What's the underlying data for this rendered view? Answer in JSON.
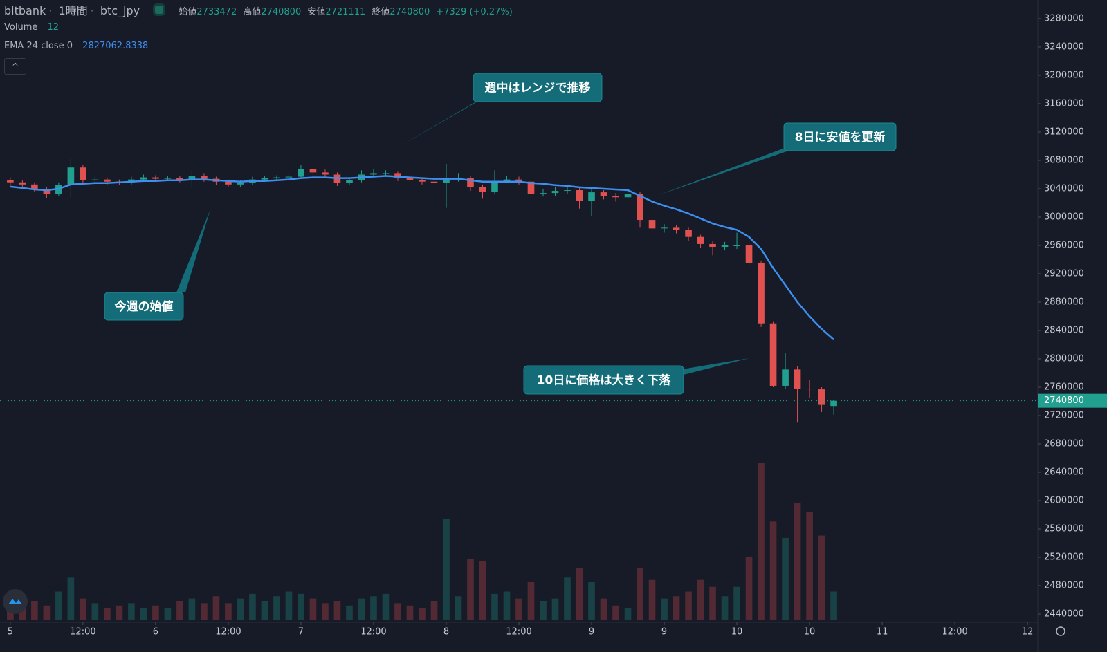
{
  "chart_data": {
    "type": "candlestick",
    "header": {
      "exchange": "bitbank",
      "interval": "1時間",
      "symbol": "btc_jpy",
      "open_label": "始値",
      "high_label": "高値",
      "low_label": "安値",
      "close_label": "終値",
      "change": "+7329 (+0.27%)"
    },
    "volume_name": "Volume",
    "up_color": "#22a08f",
    "down_color": "#e0514f",
    "x": [
      0,
      2,
      4,
      6,
      8,
      10,
      12,
      14,
      16,
      18,
      20,
      22,
      24,
      26,
      28,
      30,
      32,
      34,
      36,
      38,
      40,
      42,
      44,
      46,
      48,
      50,
      52,
      54,
      56,
      58,
      60,
      62,
      64,
      66,
      68,
      70,
      72,
      74,
      76,
      78,
      80,
      82,
      84,
      86,
      88,
      90,
      92,
      94,
      96,
      98,
      100,
      102,
      104,
      106,
      108,
      110,
      112,
      114,
      116,
      118,
      120,
      122,
      124,
      126,
      128,
      130,
      132,
      134,
      136
    ],
    "open": [
      3052000,
      3049000,
      3046000,
      3040000,
      3033000,
      3045000,
      3070000,
      3052000,
      3053000,
      3050000,
      3049000,
      3053000,
      3056000,
      3054000,
      3055000,
      3052000,
      3058000,
      3054000,
      3050000,
      3046000,
      3048000,
      3053000,
      3055000,
      3056000,
      3057000,
      3068000,
      3063000,
      3060000,
      3048000,
      3052000,
      3060000,
      3062000,
      3062000,
      3055000,
      3052000,
      3050000,
      3048000,
      3055000,
      3055000,
      3042000,
      3036000,
      3050000,
      3053000,
      3050000,
      3033000,
      3034000,
      3037000,
      3038000,
      3023000,
      3035000,
      3030000,
      3028000,
      3033000,
      2996000,
      2984000,
      2985000,
      2982000,
      2972000,
      2962000,
      2958000,
      2960000,
      2960000,
      2935000,
      2850000,
      2762000,
      2785000,
      2758000,
      2757000,
      2733472
    ],
    "high": [
      3056000,
      3052000,
      3049000,
      3043000,
      3049000,
      3082000,
      3074000,
      3057000,
      3056000,
      3053000,
      3057000,
      3060000,
      3059000,
      3058000,
      3058000,
      3066000,
      3062000,
      3057000,
      3053000,
      3052000,
      3057000,
      3058000,
      3059000,
      3061000,
      3074000,
      3071000,
      3067000,
      3063000,
      3056000,
      3066000,
      3068000,
      3066000,
      3064000,
      3058000,
      3055000,
      3054000,
      3075000,
      3062000,
      3058000,
      3046000,
      3066000,
      3058000,
      3057000,
      3054000,
      3040000,
      3043000,
      3045000,
      3041000,
      3040000,
      3038000,
      3034000,
      3037000,
      3036000,
      3000000,
      2990000,
      2989000,
      2985000,
      2975000,
      2966000,
      2965000,
      2978000,
      2963000,
      2938000,
      2853000,
      2808000,
      2790000,
      2770000,
      2760000,
      2740800
    ],
    "low": [
      3045000,
      3042000,
      3036000,
      3027000,
      3030000,
      3028000,
      3048000,
      3049000,
      3046000,
      3045000,
      3046000,
      3050000,
      3051000,
      3051000,
      3049000,
      3043000,
      3050000,
      3045000,
      3042000,
      3043000,
      3045000,
      3050000,
      3052000,
      3053000,
      3054000,
      3059000,
      3056000,
      3044000,
      3045000,
      3049000,
      3057000,
      3058000,
      3051000,
      3048000,
      3046000,
      3044000,
      3013000,
      3050000,
      3037000,
      3026000,
      3032000,
      3048000,
      3046000,
      3023000,
      3029000,
      3030000,
      3033000,
      3012000,
      3001000,
      3025000,
      3022000,
      3024000,
      2985000,
      2958000,
      2978000,
      2977000,
      2966000,
      2956000,
      2946000,
      2953000,
      2955000,
      2930000,
      2845000,
      2760000,
      2758000,
      2710000,
      2745000,
      2725000,
      2721111
    ],
    "close": [
      3049000,
      3046000,
      3040000,
      3033000,
      3045000,
      3070000,
      3052000,
      3053000,
      3050000,
      3049000,
      3053000,
      3056000,
      3054000,
      3055000,
      3052000,
      3058000,
      3054000,
      3050000,
      3046000,
      3048000,
      3053000,
      3055000,
      3056000,
      3057000,
      3068000,
      3063000,
      3060000,
      3048000,
      3052000,
      3060000,
      3062000,
      3062000,
      3055000,
      3052000,
      3050000,
      3048000,
      3055000,
      3055000,
      3042000,
      3036000,
      3050000,
      3053000,
      3050000,
      3033000,
      3034000,
      3037000,
      3038000,
      3023000,
      3035000,
      3030000,
      3028000,
      3033000,
      2996000,
      2984000,
      2985000,
      2982000,
      2972000,
      2962000,
      2958000,
      2960000,
      2960000,
      2935000,
      2850000,
      2762000,
      2785000,
      2758000,
      2757000,
      2735000,
      2740800
    ],
    "volume": [
      5,
      6,
      8,
      6,
      12,
      18,
      9,
      7,
      5,
      6,
      7,
      5,
      6,
      5,
      8,
      9,
      7,
      10,
      7,
      9,
      11,
      8,
      10,
      12,
      11,
      9,
      7,
      8,
      6,
      9,
      10,
      11,
      7,
      6,
      5,
      8,
      43,
      10,
      26,
      25,
      11,
      12,
      9,
      16,
      8,
      9,
      18,
      22,
      16,
      9,
      6,
      5,
      22,
      17,
      9,
      10,
      12,
      17,
      14,
      10,
      14,
      27,
      67,
      42,
      35,
      50,
      46,
      36,
      12
    ],
    "ema": {
      "name": "EMA 24 close 0",
      "color": "#3d8ff0",
      "values": [
        3043000,
        3041000,
        3039000,
        3038000,
        3040000,
        3046000,
        3047000,
        3048000,
        3048000,
        3049000,
        3050000,
        3051000,
        3051000,
        3052000,
        3052000,
        3053000,
        3053000,
        3052000,
        3051000,
        3050000,
        3051000,
        3051000,
        3052000,
        3053000,
        3055000,
        3056000,
        3056000,
        3055000,
        3055000,
        3056000,
        3057000,
        3058000,
        3057000,
        3056000,
        3055000,
        3054000,
        3054000,
        3054000,
        3052000,
        3050000,
        3050000,
        3050000,
        3050000,
        3048000,
        3047000,
        3045000,
        3044000,
        3042000,
        3041000,
        3040000,
        3039000,
        3038000,
        3030000,
        3022000,
        3016000,
        3011000,
        3005000,
        2998000,
        2991000,
        2986000,
        2982000,
        2972000,
        2955000,
        2928000,
        2904000,
        2880000,
        2860000,
        2842000,
        2827062.8338
      ]
    },
    "xlim": [
      -1.7,
      169.7
    ],
    "ylim": [
      2428300,
      3306300
    ],
    "xticks": [
      {
        "value": 0,
        "label": "5"
      },
      {
        "value": 12,
        "label": "12:00"
      },
      {
        "value": 24,
        "label": "6"
      },
      {
        "value": 36,
        "label": "12:00"
      },
      {
        "value": 48,
        "label": "7"
      },
      {
        "value": 60,
        "label": "12:00"
      },
      {
        "value": 72,
        "label": "8"
      },
      {
        "value": 84,
        "label": "12:00"
      },
      {
        "value": 96,
        "label": "9"
      },
      {
        "value": 108,
        "label": "9"
      },
      {
        "value": 120,
        "label": "10"
      },
      {
        "value": 132,
        "label": "10"
      },
      {
        "value": 144,
        "label": "11"
      },
      {
        "value": 156,
        "label": "12:00"
      },
      {
        "value": 168,
        "label": "12"
      }
    ],
    "yticks": [
      2440000,
      2480000,
      2520000,
      2560000,
      2600000,
      2640000,
      2680000,
      2720000,
      2760000,
      2800000,
      2840000,
      2880000,
      2920000,
      2960000,
      3000000,
      3040000,
      3080000,
      3120000,
      3160000,
      3200000,
      3240000,
      3280000
    ],
    "annotations": [
      "週中はレンジで推移",
      "8日に安値を更新",
      "今週の始値",
      "10日に価格は大きく下落"
    ]
  }
}
